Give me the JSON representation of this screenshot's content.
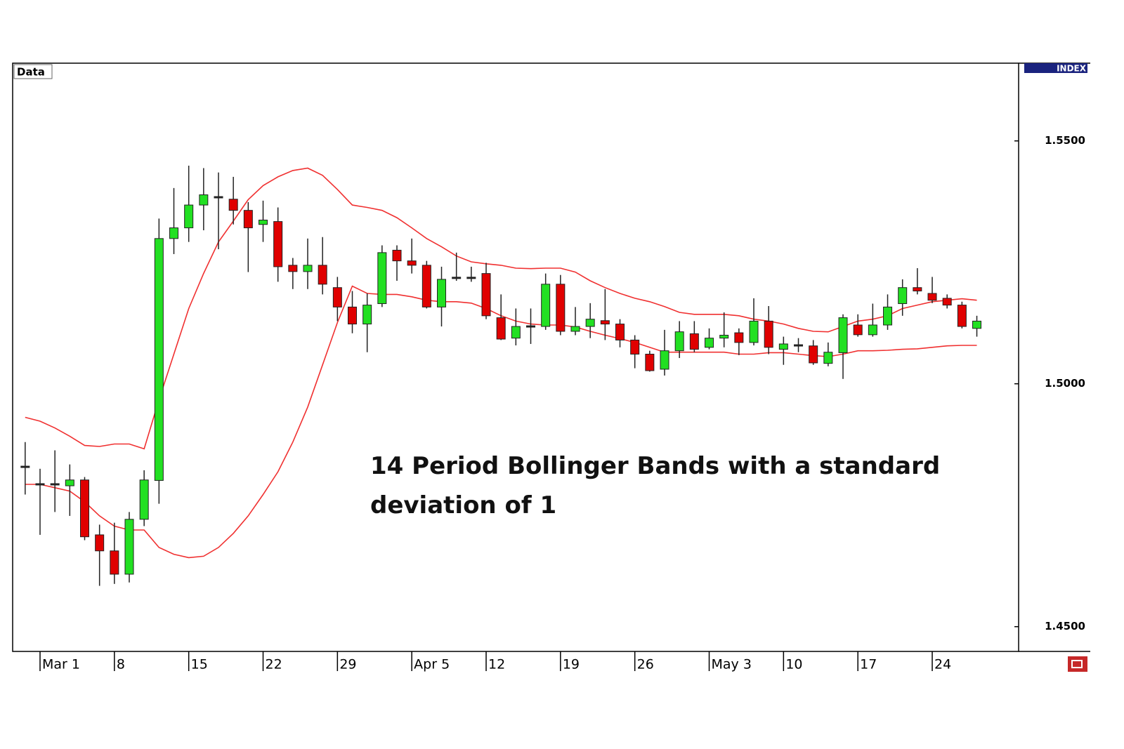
{
  "chart_data": {
    "type": "candlestick",
    "data_label": "Data",
    "index_label": "INDEX",
    "annotation": "14 Period Bollinger Bands with a standard deviation of 1",
    "categories": [
      null,
      "Mar 1",
      null,
      null,
      null,
      null,
      "8",
      null,
      null,
      null,
      null,
      "15",
      null,
      null,
      null,
      null,
      "22",
      null,
      null,
      null,
      null,
      "29",
      null,
      null,
      null,
      null,
      "Apr 5",
      null,
      null,
      null,
      null,
      "12",
      null,
      null,
      null,
      null,
      "19",
      null,
      null,
      null,
      null,
      "26",
      null,
      null,
      null,
      null,
      "May 3",
      null,
      null,
      null,
      null,
      "10",
      null,
      null,
      null,
      null,
      "17",
      null,
      null,
      null,
      null,
      "24",
      null,
      null,
      null
    ],
    "candles": {
      "open": [
        1.4829,
        1.4793,
        1.4793,
        1.479,
        1.4802,
        1.4689,
        1.4656,
        1.4608,
        1.4721,
        1.4801,
        1.5299,
        1.5321,
        1.5368,
        1.5384,
        1.538,
        1.5357,
        1.5328,
        1.5334,
        1.5244,
        1.5231,
        1.5244,
        1.5198,
        1.5158,
        1.5123,
        1.5165,
        1.5275,
        1.5253,
        1.5244,
        1.5158,
        1.5218,
        1.5218,
        1.5227,
        1.5136,
        1.5094,
        1.5118,
        1.5118,
        1.5205,
        1.5108,
        1.5118,
        1.513,
        1.5123,
        1.509,
        1.5061,
        1.503,
        1.5068,
        1.5103,
        1.5075,
        1.5094,
        1.5105,
        1.5085,
        1.5129,
        1.5071,
        1.5079,
        1.5078,
        1.5042,
        1.5064,
        1.5121,
        1.5101,
        1.5121,
        1.5165,
        1.5198,
        1.5186,
        1.5176,
        1.5162,
        1.5114
      ],
      "high": [
        1.488,
        1.4825,
        1.4863,
        1.4834,
        1.4808,
        1.471,
        1.4714,
        1.4736,
        1.4822,
        1.534,
        1.5403,
        1.5449,
        1.5444,
        1.5435,
        1.5426,
        1.5374,
        1.5377,
        1.5363,
        1.5259,
        1.5299,
        1.5302,
        1.522,
        1.5191,
        1.5186,
        1.5285,
        1.5285,
        1.5299,
        1.5253,
        1.5241,
        1.527,
        1.5241,
        1.5249,
        1.5184,
        1.5155,
        1.5155,
        1.5227,
        1.5224,
        1.5158,
        1.5166,
        1.5195,
        1.5133,
        1.51,
        1.5068,
        1.5111,
        1.5129,
        1.5129,
        1.5114,
        1.5147,
        1.5114,
        1.5176,
        1.516,
        1.5097,
        1.5094,
        1.509,
        1.5085,
        1.5143,
        1.5143,
        1.5165,
        1.5184,
        1.5215,
        1.5238,
        1.522,
        1.5184,
        1.5169,
        1.514
      ],
      "low": [
        1.4772,
        1.4689,
        1.4736,
        1.4728,
        1.4678,
        1.4584,
        1.4588,
        1.4591,
        1.4707,
        1.4753,
        1.5267,
        1.5292,
        1.5316,
        1.5277,
        1.5328,
        1.523,
        1.5292,
        1.521,
        1.5195,
        1.5195,
        1.5184,
        1.5129,
        1.5104,
        1.5065,
        1.5158,
        1.5212,
        1.5227,
        1.5155,
        1.5118,
        1.5212,
        1.521,
        1.5133,
        1.509,
        1.5079,
        1.5082,
        1.5111,
        1.51,
        1.51,
        1.5094,
        1.509,
        1.5075,
        1.5032,
        1.5025,
        1.5017,
        1.5053,
        1.5065,
        1.5071,
        1.5075,
        1.5059,
        1.5079,
        1.5061,
        1.5039,
        1.5065,
        1.5039,
        1.5036,
        1.501,
        1.5097,
        1.5097,
        1.5111,
        1.514,
        1.5184,
        1.5166,
        1.5155,
        1.5114,
        1.5097
      ],
      "close": [
        1.4829,
        1.4793,
        1.4793,
        1.4802,
        1.4685,
        1.4656,
        1.4608,
        1.4721,
        1.4802,
        1.5299,
        1.5321,
        1.5368,
        1.5389,
        1.5384,
        1.5357,
        1.5321,
        1.5337,
        1.5241,
        1.5231,
        1.5244,
        1.5205,
        1.5158,
        1.5123,
        1.5162,
        1.527,
        1.5253,
        1.5244,
        1.5158,
        1.5215,
        1.5218,
        1.5218,
        1.514,
        1.5092,
        1.5118,
        1.5118,
        1.5205,
        1.5108,
        1.5118,
        1.5133,
        1.5123,
        1.509,
        1.5061,
        1.5027,
        1.5068,
        1.5107,
        1.5071,
        1.5094,
        1.51,
        1.5085,
        1.5129,
        1.5075,
        1.5082,
        1.5079,
        1.5043,
        1.5065,
        1.5136,
        1.5101,
        1.5121,
        1.5158,
        1.5198,
        1.5191,
        1.5172,
        1.5162,
        1.5118,
        1.5129
      ]
    },
    "bands": {
      "upper": [
        1.4931,
        1.4923,
        1.4909,
        1.4892,
        1.4873,
        1.4871,
        1.4876,
        1.4876,
        1.4866,
        1.4967,
        1.5061,
        1.5155,
        1.5227,
        1.5292,
        1.5335,
        1.5379,
        1.5408,
        1.5426,
        1.5439,
        1.5444,
        1.5429,
        1.54,
        1.5368,
        1.5363,
        1.5357,
        1.5342,
        1.5321,
        1.5299,
        1.5282,
        1.5263,
        1.5251,
        1.5247,
        1.5244,
        1.5238,
        1.5237,
        1.5238,
        1.5238,
        1.523,
        1.5212,
        1.5198,
        1.5186,
        1.5176,
        1.5169,
        1.5159,
        1.5147,
        1.5143,
        1.5143,
        1.5143,
        1.514,
        1.5133,
        1.5129,
        1.5123,
        1.5114,
        1.5108,
        1.5107,
        1.5118,
        1.5129,
        1.5133,
        1.514,
        1.5155,
        1.5162,
        1.5169,
        1.5172,
        1.5175,
        1.5172
      ],
      "lower": [
        1.4793,
        1.4793,
        1.4786,
        1.4779,
        1.4757,
        1.4728,
        1.4707,
        1.4699,
        1.4699,
        1.4663,
        1.4649,
        1.4642,
        1.4645,
        1.4663,
        1.4692,
        1.4728,
        1.4772,
        1.4819,
        1.488,
        1.4952,
        1.5039,
        1.5126,
        1.5201,
        1.5186,
        1.5184,
        1.5184,
        1.5179,
        1.5172,
        1.5169,
        1.5169,
        1.5166,
        1.5155,
        1.514,
        1.5129,
        1.5123,
        1.5121,
        1.5121,
        1.5117,
        1.5108,
        1.51,
        1.5093,
        1.5085,
        1.5075,
        1.5065,
        1.5065,
        1.5065,
        1.5065,
        1.5065,
        1.5061,
        1.5061,
        1.5064,
        1.5064,
        1.5061,
        1.5058,
        1.5056,
        1.5061,
        1.5068,
        1.5068,
        1.5069,
        1.5071,
        1.5072,
        1.5075,
        1.5078,
        1.5079,
        1.5079
      ]
    },
    "up_color": "#22e022",
    "down_color": "#e00000",
    "band_color": "#f03030",
    "ylim": [
      1.4449,
      1.566
    ],
    "yticks": [
      {
        "value": 1.45,
        "label": "1.4500"
      },
      {
        "value": 1.5,
        "label": "1.5000"
      },
      {
        "value": 1.55,
        "label": "1.5500"
      }
    ]
  }
}
